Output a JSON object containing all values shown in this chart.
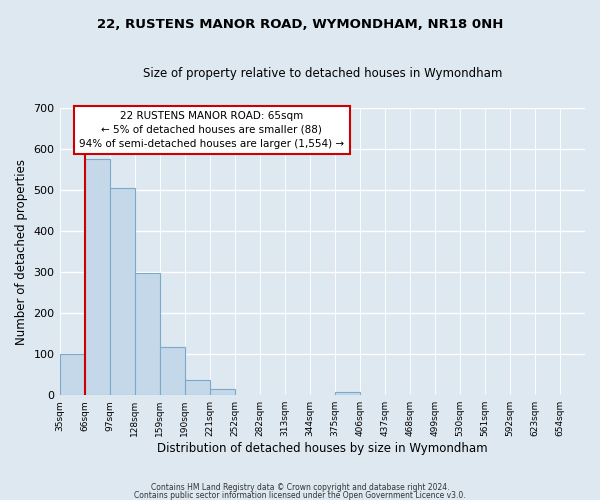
{
  "title": "22, RUSTENS MANOR ROAD, WYMONDHAM, NR18 0NH",
  "subtitle": "Size of property relative to detached houses in Wymondham",
  "xlabel": "Distribution of detached houses by size in Wymondham",
  "ylabel": "Number of detached properties",
  "bar_labels": [
    "35sqm",
    "66sqm",
    "97sqm",
    "128sqm",
    "159sqm",
    "190sqm",
    "221sqm",
    "252sqm",
    "282sqm",
    "313sqm",
    "344sqm",
    "375sqm",
    "406sqm",
    "437sqm",
    "468sqm",
    "499sqm",
    "530sqm",
    "561sqm",
    "592sqm",
    "623sqm",
    "654sqm"
  ],
  "bar_values": [
    100,
    575,
    505,
    298,
    118,
    37,
    15,
    0,
    0,
    0,
    0,
    8,
    0,
    0,
    0,
    0,
    0,
    0,
    0,
    0,
    0
  ],
  "bar_color": "#c5d8ea",
  "bar_edge_color": "#7aaac8",
  "vline_color": "#cc0000",
  "vline_x_index": 1,
  "annotation_line1": "22 RUSTENS MANOR ROAD: 65sqm",
  "annotation_line2": "← 5% of detached houses are smaller (88)",
  "annotation_line3": "94% of semi-detached houses are larger (1,554) →",
  "annotation_box_color": "#cc0000",
  "ylim": [
    0,
    700
  ],
  "yticks": [
    0,
    100,
    200,
    300,
    400,
    500,
    600,
    700
  ],
  "footer_line1": "Contains HM Land Registry data © Crown copyright and database right 2024.",
  "footer_line2": "Contains public sector information licensed under the Open Government Licence v3.0.",
  "bg_color": "#dde8f0",
  "plot_bg_color": "#dde8f0"
}
